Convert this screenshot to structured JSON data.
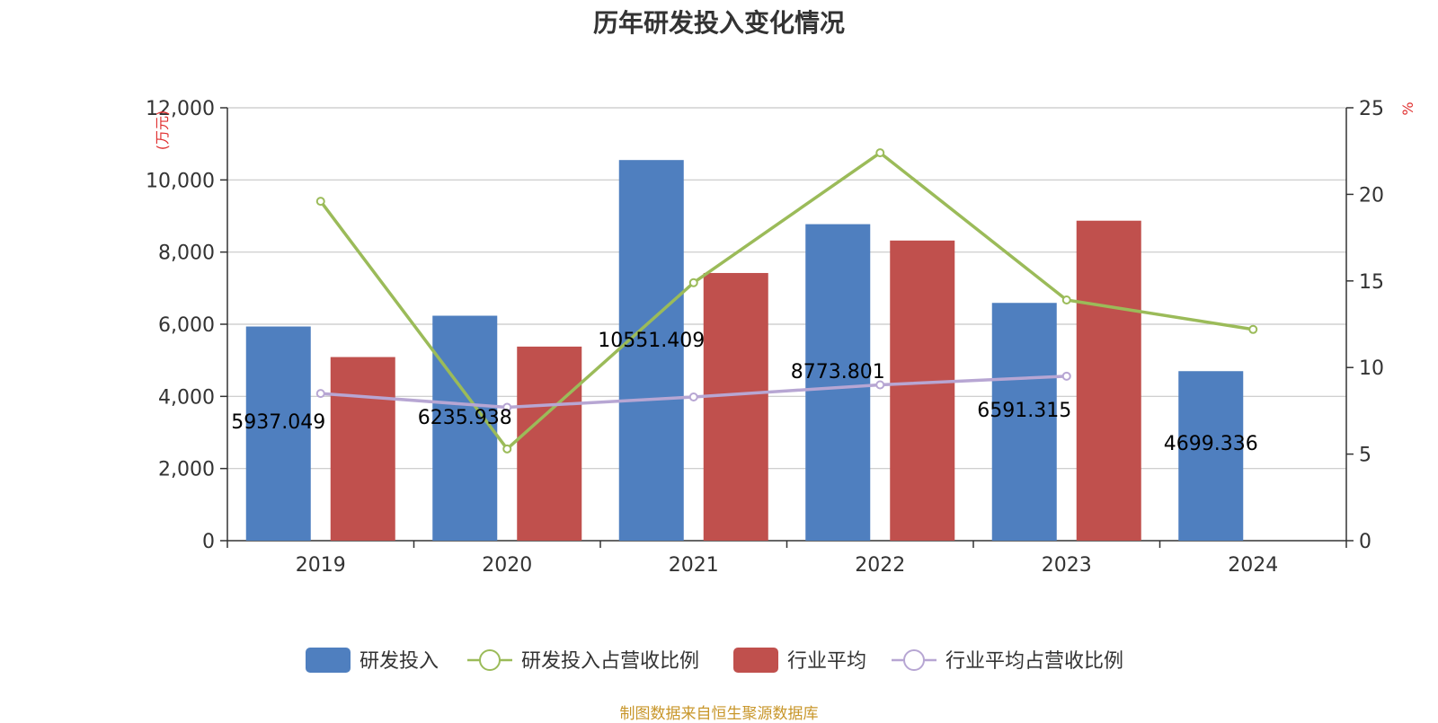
{
  "chart_data": {
    "type": "bar",
    "title": "历年研发投入变化情况",
    "categories": [
      "2019",
      "2020",
      "2021",
      "2022",
      "2023",
      "2024"
    ],
    "y_left": {
      "unit": "万元",
      "ylim": [
        0,
        12000
      ],
      "ticks": [
        "0",
        "2,000",
        "4,000",
        "6,000",
        "8,000",
        "10,000",
        "12,000"
      ]
    },
    "y_right": {
      "unit": "%",
      "ylim": [
        0,
        25
      ],
      "ticks": [
        "0",
        "5",
        "10",
        "15",
        "20",
        "25"
      ]
    },
    "series": [
      {
        "name": "研发投入",
        "type": "bar",
        "axis": "left",
        "color": "#4f7fbf",
        "values": [
          5937.049,
          6235.938,
          10551.409,
          8773.801,
          6591.315,
          4699.336
        ],
        "labels": [
          "5937.049",
          "6235.938",
          "10551.409",
          "8773.801",
          "6591.315",
          "4699.336"
        ]
      },
      {
        "name": "研发投入占营收比例",
        "type": "line",
        "axis": "right",
        "color": "#9bbb59",
        "values": [
          19.6,
          5.3,
          14.9,
          22.4,
          13.9,
          12.2
        ]
      },
      {
        "name": "行业平均",
        "type": "bar",
        "axis": "left",
        "color": "#c0504d",
        "values": [
          5090,
          5380,
          7420,
          8320,
          8870,
          null
        ]
      },
      {
        "name": "行业平均占营收比例",
        "type": "line",
        "axis": "right",
        "color": "#b7a6d3",
        "values": [
          8.5,
          7.7,
          8.3,
          9.0,
          9.5,
          null
        ]
      }
    ],
    "grid": true,
    "legend_position": "bottom"
  },
  "source": "制图数据来自恒生聚源数据库"
}
